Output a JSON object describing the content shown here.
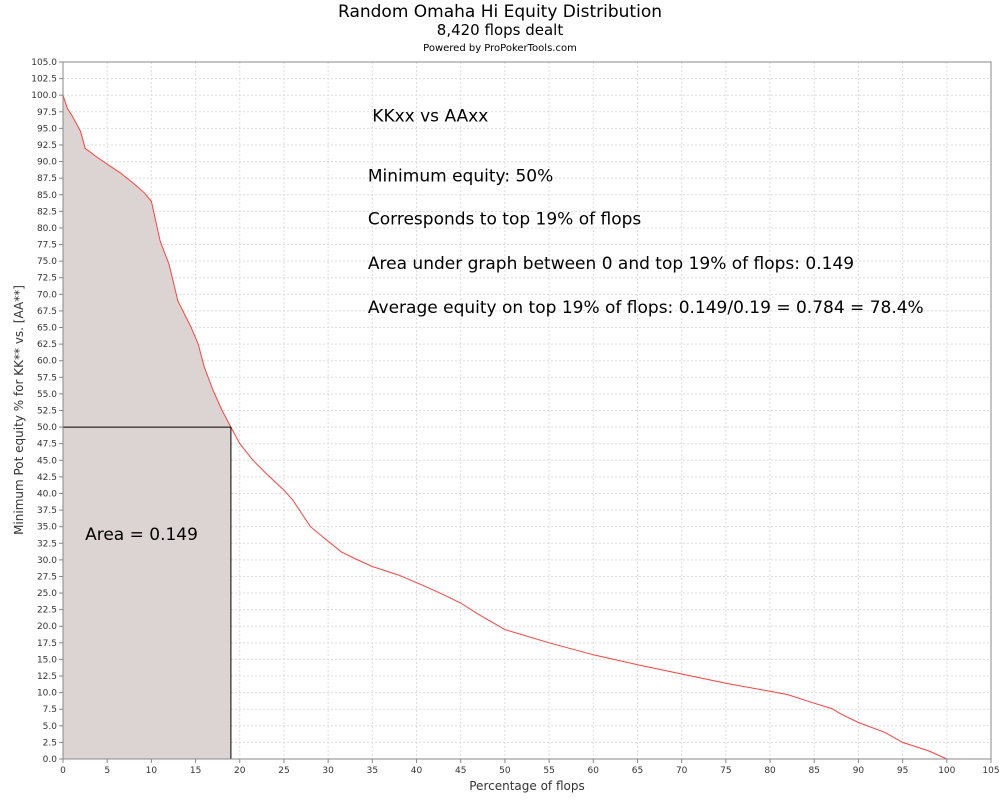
{
  "chart_data": {
    "type": "area",
    "title": "Random Omaha Hi Equity Distribution",
    "subtitle": "8,420 flops dealt",
    "credit": "Powered by ProPokerTools.com",
    "xlabel": "Percentage of flops",
    "ylabel": "Minimum Pot equity % for KK** vs. [AA**]",
    "xlim": [
      0,
      105
    ],
    "ylim": [
      0,
      105
    ],
    "x_ticks": [
      "0",
      "5",
      "10",
      "15",
      "20",
      "25",
      "30",
      "35",
      "40",
      "45",
      "50",
      "55",
      "60",
      "65",
      "70",
      "75",
      "80",
      "85",
      "90",
      "95",
      "100",
      "105"
    ],
    "y_ticks": [
      "0.0",
      "2.5",
      "5.0",
      "7.5",
      "10.0",
      "12.5",
      "15.0",
      "17.5",
      "20.0",
      "22.5",
      "25.0",
      "27.5",
      "30.0",
      "32.5",
      "35.0",
      "37.5",
      "40.0",
      "42.5",
      "45.0",
      "47.5",
      "50.0",
      "52.5",
      "55.0",
      "57.5",
      "60.0",
      "62.5",
      "65.0",
      "67.5",
      "70.0",
      "72.5",
      "75.0",
      "77.5",
      "80.0",
      "82.5",
      "85.0",
      "87.5",
      "90.0",
      "92.5",
      "95.0",
      "97.5",
      "100.0",
      "102.5",
      "105.0"
    ],
    "grid": true,
    "series": [
      {
        "color": "#ff4040",
        "fill": "#dcd3d3",
        "fill_until_x": 19,
        "points": [
          [
            0,
            100
          ],
          [
            0.5,
            98
          ],
          [
            1,
            97
          ],
          [
            2,
            94.5
          ],
          [
            2.5,
            92
          ],
          [
            3.5,
            91
          ],
          [
            5,
            89.6
          ],
          [
            6.5,
            88.3
          ],
          [
            8,
            86.7
          ],
          [
            9.2,
            85.3
          ],
          [
            10,
            84
          ],
          [
            11,
            78
          ],
          [
            12,
            74.5
          ],
          [
            13,
            69
          ],
          [
            14.5,
            65
          ],
          [
            15.3,
            62.5
          ],
          [
            16,
            59
          ],
          [
            17,
            55.5
          ],
          [
            18,
            52.5
          ],
          [
            19,
            50
          ],
          [
            20,
            47.5
          ],
          [
            21.5,
            45
          ],
          [
            23,
            43
          ],
          [
            25,
            40.5
          ],
          [
            26,
            39
          ],
          [
            27,
            37
          ],
          [
            28,
            35
          ],
          [
            30,
            32.8
          ],
          [
            31.5,
            31.2
          ],
          [
            33,
            30.2
          ],
          [
            35,
            29
          ],
          [
            38,
            27.7
          ],
          [
            41,
            26
          ],
          [
            43,
            24.8
          ],
          [
            45,
            23.5
          ],
          [
            47,
            21.8
          ],
          [
            50,
            19.5
          ],
          [
            55,
            17.5
          ],
          [
            60,
            15.7
          ],
          [
            65,
            14.2
          ],
          [
            70,
            12.8
          ],
          [
            75,
            11.4
          ],
          [
            80,
            10.2
          ],
          [
            82,
            9.7
          ],
          [
            85,
            8.4
          ],
          [
            87,
            7.6
          ],
          [
            88,
            6.8
          ],
          [
            90,
            5.5
          ],
          [
            93,
            4
          ],
          [
            95,
            2.5
          ],
          [
            98,
            1.2
          ],
          [
            100,
            0
          ]
        ]
      }
    ],
    "threshold": {
      "x": 19,
      "y": 50
    },
    "annotations": [
      {
        "text": "KKxx vs AAxx",
        "x": 35,
        "y": 96
      },
      {
        "text": "Minimum equity: 50%",
        "x": 34.5,
        "y": 87
      },
      {
        "text": "Corresponds to top 19% of flops",
        "x": 34.5,
        "y": 80.5
      },
      {
        "text": "Area under graph between 0 and top 19% of flops: 0.149",
        "x": 34.5,
        "y": 73.8
      },
      {
        "text": "Average equity on top 19% of flops: 0.149/0.19 = 0.784 = 78.4%",
        "x": 34.5,
        "y": 67.2
      },
      {
        "text": "Area = 0.149",
        "x": 2.5,
        "y": 33
      }
    ]
  }
}
